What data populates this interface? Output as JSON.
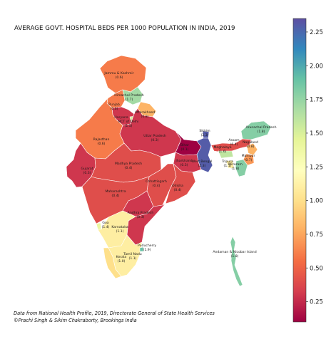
{
  "title": "AVERAGE GOVT. HOSPITAL BEDS PER 1000 POPULATION IN INDIA, 2019",
  "footer": {
    "line1": "Data from National Health Profile, 2019, Directorate General of State Health Services",
    "line2": "©Prachi Singh & Sikim Chakraborty, Brookings India"
  },
  "colorbar": {
    "colormap": "Spectral",
    "min": 0.1,
    "max": 2.35,
    "ticks": [
      "0.25",
      "0.50",
      "0.75",
      "1.00",
      "1.25",
      "1.50",
      "1.75",
      "2.00",
      "2.25"
    ]
  },
  "chart_data": {
    "type": "choropleth",
    "title": "AVERAGE GOVT. HOSPITAL BEDS PER 1000 POPULATION IN INDIA, 2019",
    "units": "beds per 1000 population",
    "regions": [
      {
        "id": "jk",
        "name": "Jammu & Kashmir",
        "value_text": "(0.6)",
        "value": 0.6
      },
      {
        "id": "hp",
        "name": "Himachal Pradesh",
        "value_text": "(1.7)",
        "value": 1.7
      },
      {
        "id": "pb",
        "name": "Punjab",
        "value_text": "(0.6)",
        "value": 0.6
      },
      {
        "id": "uk",
        "name": "Uttarakhand",
        "value_text": "(0.8)",
        "value": 0.8
      },
      {
        "id": "hr",
        "name": "Haryana",
        "value_text": "",
        "value": 0.3
      },
      {
        "id": "dl",
        "name": "NCT of Delhi",
        "value_text": "(1.5)",
        "value": 1.5
      },
      {
        "id": "rj",
        "name": "Rajasthan",
        "value_text": "(0.6)",
        "value": 0.6
      },
      {
        "id": "up",
        "name": "Uttar Pradesh",
        "value_text": "(0.3)",
        "value": 0.3
      },
      {
        "id": "br",
        "name": "Bihar",
        "value_text": "(0.1)",
        "value": 0.1
      },
      {
        "id": "sk",
        "name": "Sikkim",
        "value_text": "(2.3)",
        "value": 2.3
      },
      {
        "id": "ar",
        "name": "Arunachal Pradesh",
        "value_text": "(1.8)",
        "value": 1.8
      },
      {
        "id": "as",
        "name": "Assam",
        "value_text": "(0.4)",
        "value": 0.4
      },
      {
        "id": "ml",
        "name": "Meghalaya",
        "value_text": "(1.6)",
        "value": 1.6
      },
      {
        "id": "nl",
        "name": "Nagaland",
        "value_text": "(0.8)",
        "value": 0.8
      },
      {
        "id": "mn",
        "name": "Manipur",
        "value_text": "(0.7)",
        "value": 0.7
      },
      {
        "id": "mz",
        "name": "Mizoram",
        "value_text": "(1.8)",
        "value": 1.8
      },
      {
        "id": "tr",
        "name": "Tripura",
        "value_text": "(1.1)",
        "value": 1.1
      },
      {
        "id": "wb",
        "name": "West Bengal",
        "value_text": "(2.3)",
        "value": 2.3
      },
      {
        "id": "jh",
        "name": "Jharkhand",
        "value_text": "(0.3)",
        "value": 0.3
      },
      {
        "id": "gj",
        "name": "Gujarat",
        "value_text": "(0.3)",
        "value": 0.3
      },
      {
        "id": "mp",
        "name": "Madhya Pradesh",
        "value_text": "(0.4)",
        "value": 0.4
      },
      {
        "id": "ct",
        "name": "Chhattisgarh",
        "value_text": "(0.4)",
        "value": 0.4
      },
      {
        "id": "or",
        "name": "Odisha",
        "value_text": "(0.4)",
        "value": 0.4
      },
      {
        "id": "mh",
        "name": "Maharashtra",
        "value_text": "(0.4)",
        "value": 0.4
      },
      {
        "id": "tg",
        "name": "Telangana",
        "value_text": "",
        "value": 0.3
      },
      {
        "id": "ap",
        "name": "Andhra Pradesh",
        "value_text": "(0.3)",
        "value": 0.3
      },
      {
        "id": "ga",
        "name": "Goa",
        "value_text": "(1.4)",
        "value": 1.4
      },
      {
        "id": "ka",
        "name": "Karnataka",
        "value_text": "(1.1)",
        "value": 1.1
      },
      {
        "id": "kl",
        "name": "Kerala",
        "value_text": "(1.0)",
        "value": 1.0
      },
      {
        "id": "tn",
        "name": "Tamil Nadu",
        "value_text": "(1.1)",
        "value": 1.1
      },
      {
        "id": "py",
        "name": "Puducherry",
        "value_text": "(1.9)",
        "value": 1.9
      },
      {
        "id": "an",
        "name": "Andaman & Nicobar Island",
        "value_text": "(1.8)",
        "value": 1.8
      }
    ]
  }
}
